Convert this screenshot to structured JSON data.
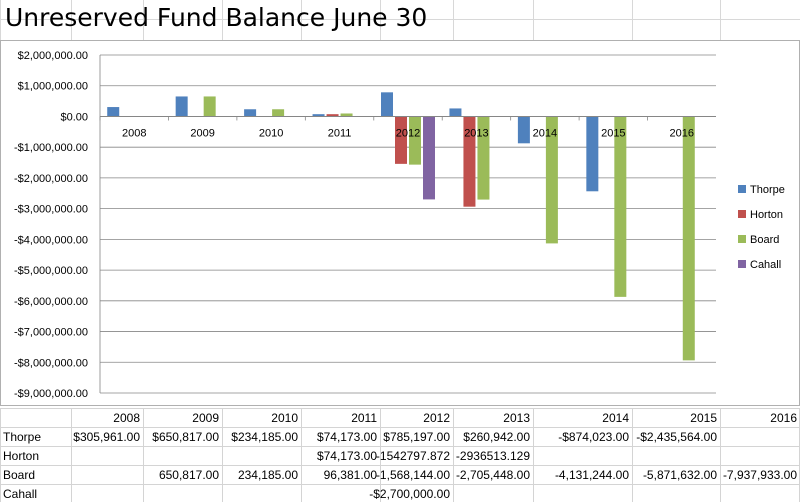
{
  "sheet": {
    "title": "Unreserved Fund Balance June 30"
  },
  "chart_data": {
    "type": "bar",
    "title": "",
    "xlabel": "",
    "ylabel": "",
    "categories": [
      "2008",
      "2009",
      "2010",
      "2011",
      "2012",
      "2013",
      "2014",
      "2015",
      "2016"
    ],
    "ylim": [
      -9000000,
      2000000
    ],
    "y_ticks": [
      2000000,
      1000000,
      0,
      -1000000,
      -2000000,
      -3000000,
      -4000000,
      -5000000,
      -6000000,
      -7000000,
      -8000000,
      -9000000
    ],
    "y_tick_labels": [
      "$2,000,000.00",
      "$1,000,000.00",
      "$0.00",
      "-$1,000,000.00",
      "-$2,000,000.00",
      "-$3,000,000.00",
      "-$4,000,000.00",
      "-$5,000,000.00",
      "-$6,000,000.00",
      "-$7,000,000.00",
      "-$8,000,000.00",
      "-$9,000,000.00"
    ],
    "grid": true,
    "legend_position": "right",
    "series": [
      {
        "name": "Thorpe",
        "color": "#4f81bd",
        "values": [
          305961,
          650817,
          234185,
          74173,
          785197,
          260942,
          -874023,
          -2435564,
          null
        ]
      },
      {
        "name": "Horton",
        "color": "#c0504d",
        "values": [
          null,
          null,
          null,
          74173,
          -1542797.872,
          -2936513.129,
          null,
          null,
          null
        ]
      },
      {
        "name": "Board",
        "color": "#9bbb59",
        "values": [
          null,
          650817,
          234185,
          96381,
          -1568144,
          -2705448,
          -4131244,
          -5871632,
          -7937933
        ]
      },
      {
        "name": "Cahall",
        "color": "#8064a2",
        "values": [
          null,
          null,
          null,
          null,
          -2700000,
          null,
          null,
          null,
          null
        ]
      }
    ]
  },
  "table": {
    "header": [
      "",
      "2008",
      "2009",
      "2010",
      "2011",
      "2012",
      "2013",
      "2014",
      "2015",
      "2016"
    ],
    "rows": [
      [
        "Thorpe",
        "$305,961.00",
        "$650,817.00",
        "$234,185.00",
        "$74,173.00",
        "$785,197.00",
        "$260,942.00",
        "-$874,023.00",
        "-$2,435,564.00",
        ""
      ],
      [
        "Horton",
        "",
        "",
        "",
        "$74,173.00",
        "-1542797.872",
        "-2936513.129",
        "",
        "",
        ""
      ],
      [
        "Board",
        "",
        "650,817.00",
        "234,185.00",
        "96,381.00",
        "-1,568,144.00",
        "-2,705,448.00",
        "-4,131,244.00",
        "-5,871,632.00",
        "-7,937,933.00"
      ],
      [
        "Cahall",
        "",
        "",
        "",
        "",
        "-$2,700,000.00",
        "",
        "",
        "",
        ""
      ]
    ]
  }
}
